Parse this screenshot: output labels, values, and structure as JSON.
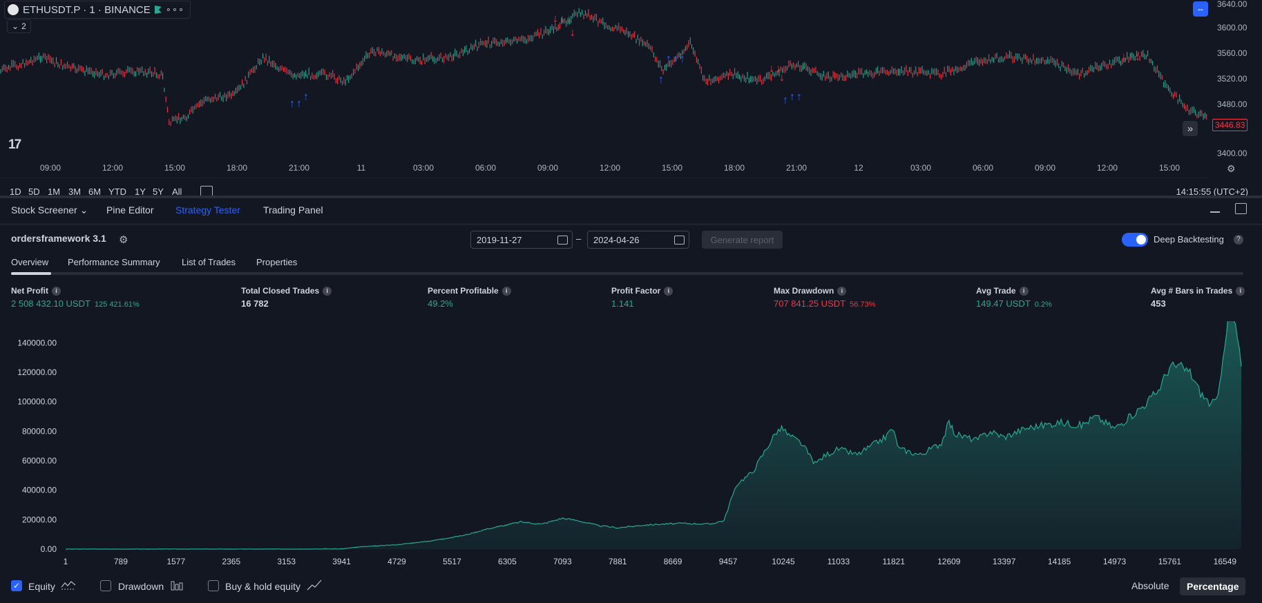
{
  "symbol": {
    "text": "ETHUSDT.P · 1 · BINANCE",
    "more": "∘∘∘"
  },
  "indicator_toggle": {
    "count": "2"
  },
  "logo": "17",
  "price_axis": {
    "labels": [
      "3640.00",
      "3600.00",
      "3560.00",
      "3520.00",
      "3480.00",
      "3400.00"
    ],
    "last_price": "3446.83",
    "range": [
      3400,
      3640
    ]
  },
  "time_axis": {
    "labels": [
      "09:00",
      "12:00",
      "15:00",
      "18:00",
      "21:00",
      "11",
      "03:00",
      "06:00",
      "09:00",
      "12:00",
      "15:00",
      "18:00",
      "21:00",
      "12",
      "03:00",
      "06:00",
      "09:00",
      "12:00",
      "15:00"
    ]
  },
  "range_bar": {
    "items": [
      "1D",
      "5D",
      "1M",
      "3M",
      "6M",
      "YTD",
      "1Y",
      "5Y",
      "All"
    ],
    "clock": "14:15:55 (UTC+2)"
  },
  "panel_tabs": [
    "Stock Screener",
    "Pine Editor",
    "Strategy Tester",
    "Trading Panel"
  ],
  "strategy": {
    "name": "ordersframework 3.1",
    "date_from": "2019-11-27",
    "date_to": "2024-04-26",
    "dash": "–",
    "generate_label": "Generate report",
    "deep_backtesting_label": "Deep Backtesting",
    "deep_backtesting_on": true
  },
  "sub_tabs": [
    "Overview",
    "Performance Summary",
    "List of Trades",
    "Properties"
  ],
  "metrics": [
    {
      "label": "Net Profit",
      "value": "2 508 432.10 USDT",
      "pct": "125 421.61%",
      "color": "#22ab94"
    },
    {
      "label": "Total Closed Trades",
      "value": "16 782",
      "pct": "",
      "color": "#d1d4dc"
    },
    {
      "label": "Percent Profitable",
      "value": "49.2%",
      "pct": "",
      "color": "#22ab94"
    },
    {
      "label": "Profit Factor",
      "value": "1.141",
      "pct": "",
      "color": "#22ab94"
    },
    {
      "label": "Max Drawdown",
      "value": "707 841.25 USDT",
      "pct": "56.73%",
      "color": "#f23645"
    },
    {
      "label": "Avg Trade",
      "value": "149.47 USDT",
      "pct": "0.2%",
      "color": "#22ab94"
    },
    {
      "label": "Avg # Bars in Trades",
      "value": "453",
      "pct": "",
      "color": "#d1d4dc"
    }
  ],
  "chart_data": {
    "type": "area",
    "title": "",
    "xlabel": "",
    "ylabel": "",
    "y_ticks": [
      "140000.00",
      "120000.00",
      "100000.00",
      "80000.00",
      "60000.00",
      "40000.00",
      "20000.00",
      "0.00"
    ],
    "x_ticks": [
      "1",
      "789",
      "1577",
      "2365",
      "3153",
      "3941",
      "4729",
      "5517",
      "6305",
      "7093",
      "7881",
      "8669",
      "9457",
      "10245",
      "11033",
      "11821",
      "12609",
      "13397",
      "14185",
      "14973",
      "15761",
      "16549"
    ],
    "xlim": [
      1,
      16782
    ],
    "ylim": [
      0,
      150000
    ],
    "grid": false,
    "series": [
      {
        "name": "Equity",
        "x": [
          1,
          1500,
          3000,
          3941,
          4200,
          4729,
          5200,
          5700,
          6000,
          6305,
          6500,
          6800,
          7093,
          7300,
          7600,
          7881,
          8300,
          8800,
          9200,
          9400,
          9500,
          9600,
          9800,
          10000,
          10150,
          10245,
          10300,
          10500,
          10700,
          10850,
          11033,
          11300,
          11500,
          11700,
          11800,
          11900,
          12200,
          12500,
          12609,
          12700,
          13000,
          13200,
          13397,
          13700,
          14185,
          14500,
          14700,
          14973,
          15200,
          15400,
          15600,
          15761,
          15900,
          16050,
          16200,
          16350,
          16450,
          16520,
          16600,
          16700,
          16782
        ],
        "values": [
          0,
          0,
          0,
          200,
          1500,
          3000,
          5500,
          9500,
          13500,
          16500,
          18500,
          17000,
          21000,
          19500,
          16000,
          14500,
          16500,
          17500,
          17000,
          19500,
          34000,
          45000,
          52000,
          68000,
          80000,
          82000,
          78000,
          72000,
          58000,
          64000,
          68000,
          64000,
          70000,
          76000,
          82000,
          68000,
          64000,
          72000,
          86000,
          78000,
          74000,
          80000,
          76000,
          82000,
          86000,
          84000,
          90000,
          82000,
          90000,
          98000,
          108000,
          124000,
          124000,
          120000,
          106000,
          98000,
          102000,
          132000,
          158000,
          152000,
          124000
        ]
      }
    ]
  },
  "footer": {
    "equity_label": "Equity",
    "drawdown_label": "Drawdown",
    "buyhold_label": "Buy & hold equity",
    "absolute_label": "Absolute",
    "percentage_label": "Percentage"
  },
  "colors": {
    "background": "#131722",
    "accent": "#2962ff",
    "up": "#22ab94",
    "down": "#f23645"
  }
}
